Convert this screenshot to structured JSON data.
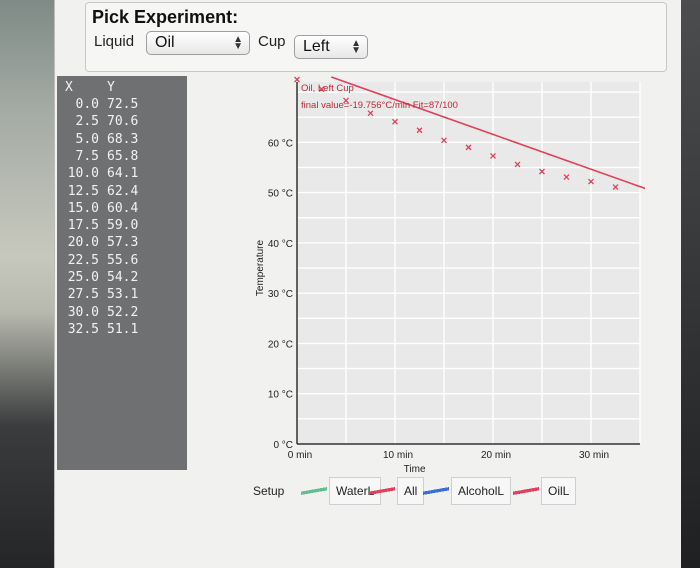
{
  "header": {
    "title": "Pick Experiment:",
    "liquid_label": "Liquid",
    "liquid_value": "Oil",
    "cup_label": "Cup",
    "cup_value": "Left"
  },
  "table": {
    "columns": [
      "X",
      "Y"
    ],
    "rows": [
      [
        "0.0",
        "72.5"
      ],
      [
        "2.5",
        "70.6"
      ],
      [
        "5.0",
        "68.3"
      ],
      [
        "7.5",
        "65.8"
      ],
      [
        "10.0",
        "64.1"
      ],
      [
        "12.5",
        "62.4"
      ],
      [
        "15.0",
        "60.4"
      ],
      [
        "17.5",
        "59.0"
      ],
      [
        "20.0",
        "57.3"
      ],
      [
        "22.5",
        "55.6"
      ],
      [
        "25.0",
        "54.2"
      ],
      [
        "27.5",
        "53.1"
      ],
      [
        "30.0",
        "52.2"
      ],
      [
        "32.5",
        "51.1"
      ]
    ]
  },
  "chart_data": {
    "type": "scatter",
    "annotation_line1": "Oil, Left Cup",
    "annotation_line2": "final value=-19.756°C/min  Fit=87/100",
    "xlabel": "Time",
    "ylabel": "Temperature",
    "xlim": [
      0,
      35
    ],
    "ylim": [
      0,
      72
    ],
    "x_ticks": [
      "0 min",
      "10 min",
      "20 min",
      "30 min"
    ],
    "x_tick_values": [
      0,
      10,
      20,
      30
    ],
    "y_ticks": [
      "0 °C",
      "10 °C",
      "20 °C",
      "30 °C",
      "40 °C",
      "50 °C",
      "60 °C"
    ],
    "y_tick_values": [
      0,
      10,
      20,
      30,
      40,
      50,
      60
    ],
    "grid": true,
    "series": [
      {
        "x": [
          0.0,
          2.5,
          5.0,
          7.5,
          10.0,
          12.5,
          15.0,
          17.5,
          20.0,
          22.5,
          25.0,
          27.5,
          30.0,
          32.5
        ],
        "y": [
          72.5,
          70.6,
          68.3,
          65.8,
          64.1,
          62.4,
          60.4,
          59.0,
          57.3,
          55.6,
          54.2,
          53.1,
          52.2,
          51.1
        ],
        "color": "#e0405a"
      }
    ],
    "fit_line": {
      "x": [
        3.5,
        36.0
      ],
      "y": [
        73.0,
        50.5
      ],
      "color": "#e0405a"
    }
  },
  "legend": {
    "setup_label": "Setup",
    "items": [
      {
        "label": "WaterL",
        "color": "#5fbf8f"
      },
      {
        "label": "All",
        "color": "#e0405a"
      },
      {
        "label": "AlcoholL",
        "color": "#3b6fd8"
      },
      {
        "label": "OilL",
        "color": "#e0405a"
      }
    ]
  }
}
